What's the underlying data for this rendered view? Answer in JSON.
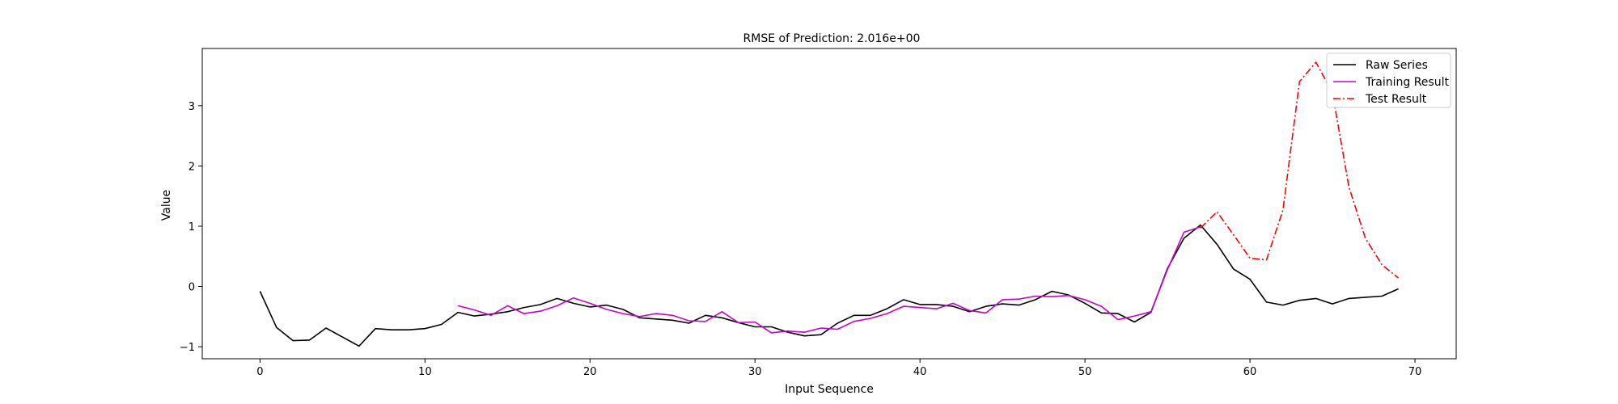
{
  "chart_data": {
    "type": "line",
    "title": "RMSE of Prediction: 2.016e+00",
    "xlabel": "Input Sequence",
    "ylabel": "Value",
    "xlim": [
      -3.5,
      72.5
    ],
    "ylim": [
      -1.2,
      3.95
    ],
    "xticks": [
      0,
      10,
      20,
      30,
      40,
      50,
      60,
      70
    ],
    "yticks": [
      -1,
      0,
      1,
      2,
      3
    ],
    "grid": false,
    "legend_position": "top-right",
    "series": [
      {
        "name": "Raw Series",
        "color": "#000000",
        "style": "solid",
        "x_start": 0,
        "values": [
          -0.08,
          -0.68,
          -0.9,
          -0.89,
          -0.69,
          -0.84,
          -0.99,
          -0.7,
          -0.72,
          -0.72,
          -0.7,
          -0.63,
          -0.43,
          -0.49,
          -0.46,
          -0.42,
          -0.35,
          -0.3,
          -0.2,
          -0.28,
          -0.34,
          -0.31,
          -0.38,
          -0.52,
          -0.54,
          -0.56,
          -0.61,
          -0.48,
          -0.52,
          -0.6,
          -0.67,
          -0.67,
          -0.76,
          -0.82,
          -0.8,
          -0.61,
          -0.48,
          -0.48,
          -0.37,
          -0.22,
          -0.3,
          -0.3,
          -0.33,
          -0.42,
          -0.33,
          -0.29,
          -0.31,
          -0.22,
          -0.08,
          -0.14,
          -0.28,
          -0.44,
          -0.45,
          -0.59,
          -0.43,
          0.3,
          0.8,
          1.02,
          0.7,
          0.29,
          0.12,
          -0.26,
          -0.31,
          -0.23,
          -0.2,
          -0.29,
          -0.2,
          -0.18,
          -0.16,
          -0.04
        ]
      },
      {
        "name": "Training Result",
        "color": "#cc00cc",
        "style": "solid",
        "x_start": 12,
        "values": [
          -0.32,
          -0.39,
          -0.48,
          -0.32,
          -0.45,
          -0.41,
          -0.32,
          -0.19,
          -0.28,
          -0.38,
          -0.45,
          -0.5,
          -0.45,
          -0.48,
          -0.57,
          -0.58,
          -0.42,
          -0.6,
          -0.59,
          -0.77,
          -0.74,
          -0.76,
          -0.69,
          -0.71,
          -0.58,
          -0.53,
          -0.45,
          -0.33,
          -0.35,
          -0.37,
          -0.28,
          -0.4,
          -0.44,
          -0.22,
          -0.21,
          -0.16,
          -0.17,
          -0.15,
          -0.22,
          -0.33,
          -0.55,
          -0.49,
          -0.42,
          0.28,
          0.9,
          0.99
        ]
      },
      {
        "name": "Test Result",
        "color": "#ff0000",
        "style": "dashdot",
        "x_start": 57,
        "values": [
          0.97,
          1.24,
          0.86,
          0.47,
          0.44,
          1.27,
          3.4,
          3.72,
          3.22,
          1.65,
          0.8,
          0.36,
          0.14
        ]
      }
    ]
  }
}
